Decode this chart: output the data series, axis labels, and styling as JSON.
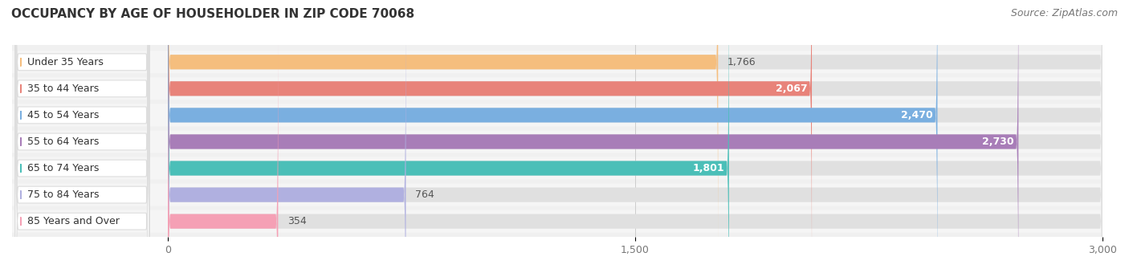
{
  "title": "OCCUPANCY BY AGE OF HOUSEHOLDER IN ZIP CODE 70068",
  "source": "Source: ZipAtlas.com",
  "categories": [
    "Under 35 Years",
    "35 to 44 Years",
    "45 to 54 Years",
    "55 to 64 Years",
    "65 to 74 Years",
    "75 to 84 Years",
    "85 Years and Over"
  ],
  "values": [
    1766,
    2067,
    2470,
    2730,
    1801,
    764,
    354
  ],
  "bar_colors": [
    "#F5BE7E",
    "#E8837A",
    "#7AAFE0",
    "#A87DB8",
    "#4BBFB8",
    "#B0B0E0",
    "#F5A0B5"
  ],
  "bar_bg_colors": [
    "#ECECEC",
    "#ECECEC",
    "#ECECEC",
    "#ECECEC",
    "#ECECEC",
    "#ECECEC",
    "#ECECEC"
  ],
  "row_bg_colors": [
    "#F9F9F9",
    "#F9F9F9",
    "#F9F9F9",
    "#F9F9F9",
    "#F9F9F9",
    "#F9F9F9",
    "#F9F9F9"
  ],
  "xlim_start": 0,
  "xlim_end": 3000,
  "xticks": [
    0,
    1500,
    3000
  ],
  "xticklabels": [
    "0",
    "1,500",
    "3,000"
  ],
  "title_fontsize": 11,
  "source_fontsize": 9,
  "label_fontsize": 9,
  "value_fontsize": 9,
  "background_color": "#F0F0F0",
  "plot_bg": "#F5F5F5"
}
